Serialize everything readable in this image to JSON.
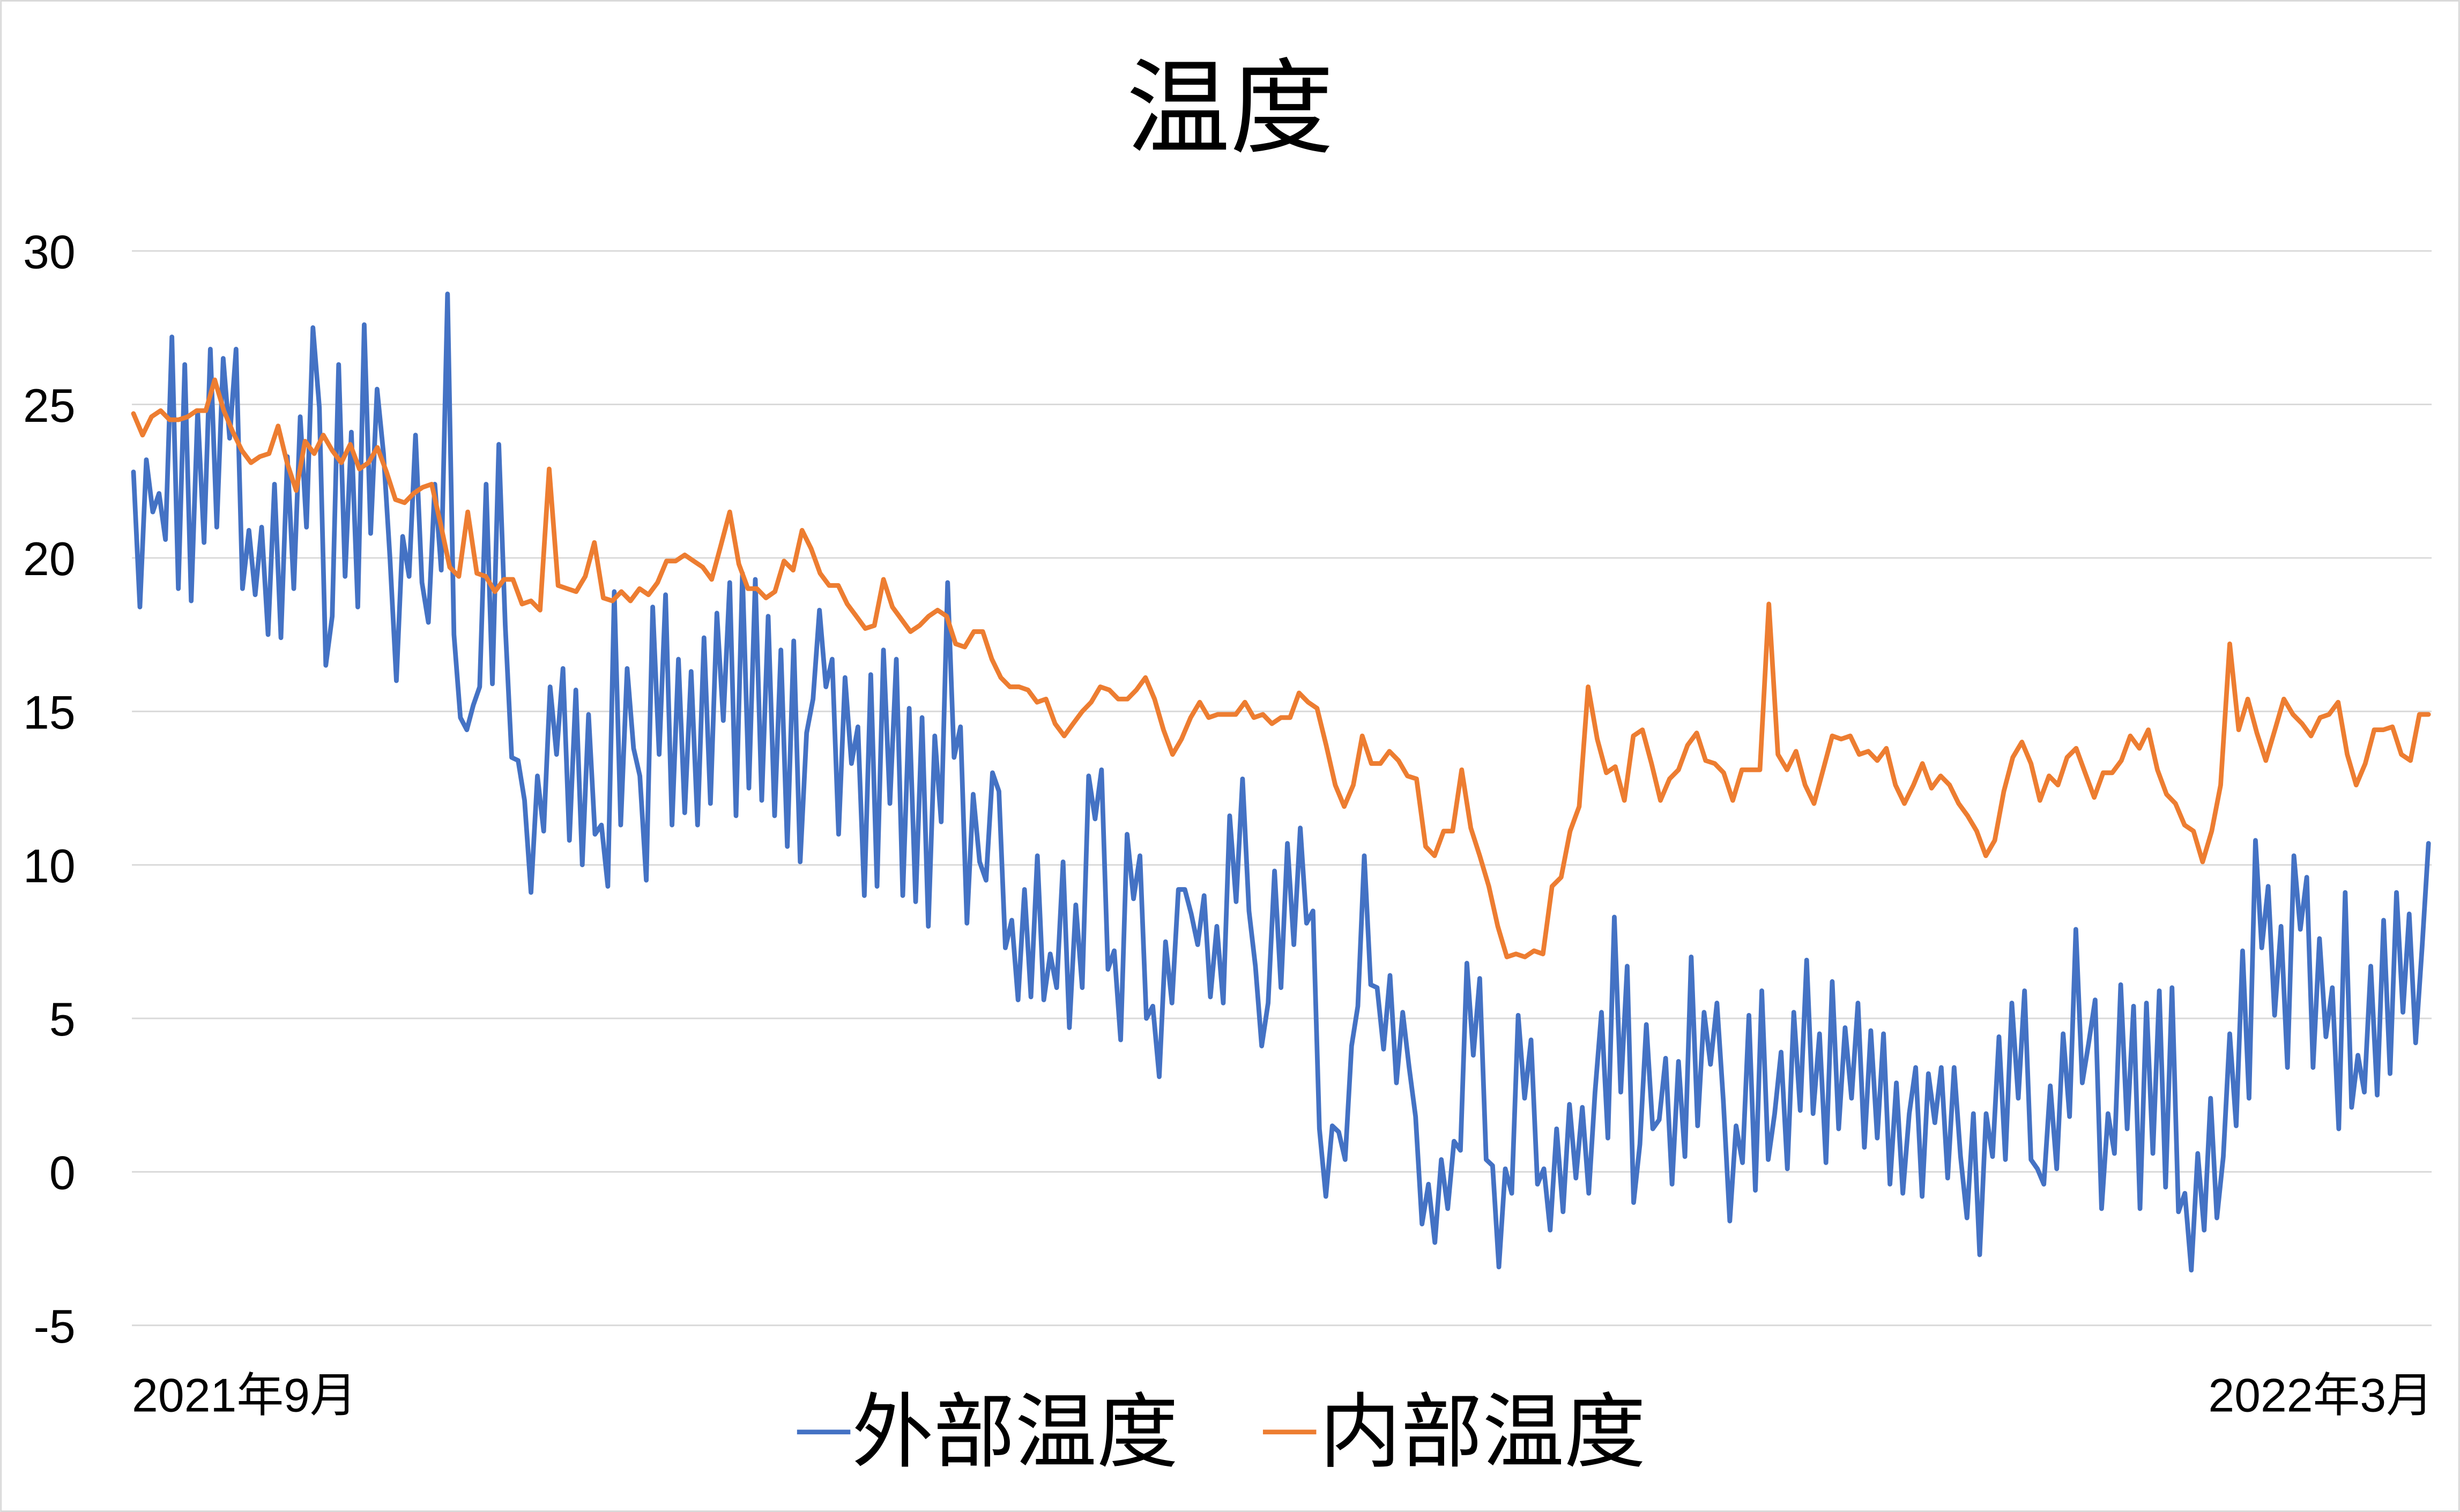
{
  "chart_data": {
    "type": "line",
    "title": "温度",
    "xlabel": "",
    "ylabel": "",
    "ylim": [
      -5,
      30
    ],
    "yticks": [
      "30",
      "25",
      "20",
      "15",
      "10",
      "5",
      "0",
      "-5"
    ],
    "ytick_values": [
      30,
      25,
      20,
      15,
      10,
      5,
      0,
      -5
    ],
    "x_tick_labels": {
      "start": "2021年9月",
      "end": "2022年3月"
    },
    "grid": true,
    "legend_position": "bottom",
    "series": [
      {
        "name": "外部温度",
        "color": "#4472C4",
        "values": [
          22.8,
          18.4,
          23.2,
          21.5,
          22.1,
          20.6,
          27.2,
          19,
          26.3,
          18.6,
          24.8,
          20.5,
          26.8,
          21,
          26.5,
          23.9,
          26.8,
          19,
          20.9,
          18.8,
          21,
          17.5,
          22.4,
          17.4,
          23.3,
          19,
          24.6,
          21,
          27.5,
          24.9,
          16.5,
          18.1,
          26.3,
          19.4,
          24.1,
          18.4,
          27.6,
          20.8,
          25.5,
          23.4,
          20,
          16,
          20.7,
          19.4,
          24,
          19.2,
          17.9,
          22.4,
          19.6,
          28.6,
          17.5,
          14.8,
          14.4,
          15.2,
          15.8,
          22.4,
          15.9,
          23.7,
          17.8,
          13.5,
          13.4,
          12.1,
          9.1,
          12.9,
          11.1,
          15.8,
          13.6,
          16.4,
          10.8,
          15.7,
          10,
          14.9,
          11,
          11.3,
          9.3,
          18.9,
          11.3,
          16.4,
          13.8,
          12.9,
          9.5,
          18.4,
          13.6,
          18.8,
          11.3,
          16.7,
          11.7,
          16.3,
          11.3,
          17.4,
          12,
          18.2,
          14.7,
          19.2,
          11.6,
          19.5,
          12.5,
          19.3,
          12.1,
          18.1,
          11.6,
          17,
          10.6,
          17.3,
          10.1,
          14.3,
          15.4,
          18.3,
          15.8,
          16.7,
          11,
          16.1,
          13.3,
          14.5,
          9,
          16.2,
          9.3,
          17,
          12,
          16.7,
          9,
          15.1,
          8.8,
          14.8,
          8,
          14.2,
          11.4,
          19.2,
          13.5,
          14.5,
          8.1,
          12.3,
          10.1,
          9.5,
          13,
          12.4,
          7.3,
          8.2,
          5.6,
          9.2,
          5.7,
          10.3,
          5.6,
          7.1,
          6,
          10.1,
          4.7,
          8.7,
          6,
          12.9,
          11.5,
          13.1,
          6.6,
          7.2,
          4.3,
          11,
          8.9,
          10.3,
          5,
          5.4,
          3.1,
          7.5,
          5.5,
          9.2,
          9.2,
          8.4,
          7.4,
          9,
          5.7,
          8,
          5.5,
          11.6,
          8.8,
          12.8,
          8.5,
          6.7,
          4.1,
          5.5,
          9.8,
          6,
          10.7,
          7.4,
          11.2,
          8.1,
          8.5,
          1.4,
          -0.8,
          1.5,
          1.3,
          0.4,
          4.1,
          5.4,
          10.3,
          6.1,
          6,
          4,
          6.4,
          2.9,
          5.2,
          3.4,
          1.8,
          -1.7,
          -0.4,
          -2.3,
          0.4,
          -1.2,
          1,
          0.7,
          6.8,
          3.8,
          6.3,
          0.4,
          0.2,
          -3.1,
          0.1,
          -0.7,
          5.1,
          2.4,
          4.3,
          -0.4,
          0.1,
          -1.9,
          1.4,
          -1.3,
          2.2,
          -0.2,
          2.1,
          -0.7,
          2.6,
          5.2,
          1.1,
          8.3,
          2.6,
          6.7,
          -1,
          0.9,
          4.8,
          1.4,
          1.7,
          3.7,
          -0.4,
          3.6,
          0.5,
          7,
          1.5,
          5.2,
          3.5,
          5.5,
          2.3,
          -1.6,
          1.5,
          0.3,
          5.1,
          -0.6,
          5.9,
          0.4,
          1.9,
          3.9,
          0.1,
          5.2,
          2,
          6.9,
          1.9,
          4.5,
          0.3,
          6.2,
          1.4,
          4.7,
          2.4,
          5.5,
          0.8,
          4.6,
          1.1,
          4.5,
          -0.4,
          2.9,
          -0.7,
          1.9,
          3.4,
          -0.8,
          3.2,
          1.6,
          3.4,
          -0.2,
          3.4,
          0.5,
          -1.5,
          1.9,
          -2.7,
          1.9,
          0.5,
          4.4,
          0.4,
          5.5,
          2.4,
          5.9,
          0.4,
          0.1,
          -0.4,
          2.8,
          0.1,
          4.5,
          1.8,
          7.9,
          2.9,
          4.2,
          5.6,
          -1.2,
          1.9,
          0.6,
          6.1,
          1.4,
          5.4,
          -1.2,
          5.5,
          0.6,
          5.9,
          -0.5,
          6,
          -1.3,
          -0.7,
          -3.2,
          0.6,
          -1.9,
          2.4,
          -1.5,
          0.5,
          4.5,
          1.5,
          7.2,
          2.4,
          10.8,
          7.3,
          9.3,
          5.1,
          8,
          3.4,
          10.3,
          7.9,
          9.6,
          3.4,
          7.6,
          4.4,
          6,
          1.4,
          9.1,
          2.1,
          3.8,
          2.6,
          6.7,
          2.5,
          8.2,
          3.2,
          9.1,
          5.2,
          8.4,
          4.2,
          7.3,
          10.7
        ]
      },
      {
        "name": "内部温度",
        "color": "#ED7D31",
        "values": [
          24.7,
          24.0,
          24.6,
          24.8,
          24.5,
          24.5,
          24.6,
          24.8,
          24.8,
          25.8,
          24.8,
          24.1,
          23.5,
          23.1,
          23.3,
          23.4,
          24.3,
          23.1,
          22.2,
          23.8,
          23.4,
          24,
          23.5,
          23.1,
          23.7,
          22.9,
          23.1,
          23.6,
          22.8,
          21.9,
          21.8,
          22.1,
          22.3,
          22.4,
          21.1,
          19.7,
          19.4,
          21.5,
          19.5,
          19.4,
          18.9,
          19.3,
          19.3,
          18.5,
          18.6,
          18.3,
          22.9,
          19.1,
          19,
          18.9,
          19.4,
          20.5,
          18.7,
          18.6,
          18.9,
          18.6,
          19,
          18.8,
          19.2,
          19.9,
          19.9,
          20.1,
          19.9,
          19.7,
          19.3,
          20.4,
          21.5,
          19.8,
          19,
          19,
          18.7,
          18.9,
          19.9,
          19.6,
          20.9,
          20.3,
          19.5,
          19.1,
          19.1,
          18.5,
          18.1,
          17.7,
          17.8,
          19.3,
          18.4,
          18,
          17.6,
          17.8,
          18.1,
          18.3,
          18.1,
          17.2,
          17.1,
          17.6,
          17.6,
          16.7,
          16.1,
          15.8,
          15.8,
          15.7,
          15.3,
          15.4,
          14.6,
          14.2,
          14.6,
          15,
          15.3,
          15.8,
          15.7,
          15.4,
          15.4,
          15.7,
          16.1,
          15.4,
          14.4,
          13.6,
          14.1,
          14.8,
          15.3,
          14.8,
          14.9,
          14.9,
          14.9,
          15.3,
          14.8,
          14.9,
          14.6,
          14.8,
          14.8,
          15.6,
          15.3,
          15.1,
          13.9,
          12.6,
          11.9,
          12.6,
          14.2,
          13.3,
          13.3,
          13.7,
          13.4,
          12.9,
          12.8,
          10.6,
          10.3,
          11.1,
          11.1,
          13.1,
          11.2,
          10.3,
          9.3,
          8,
          7,
          7.1,
          7,
          7.2,
          7.1,
          9.3,
          9.6,
          11.1,
          11.9,
          15.8,
          14.1,
          13,
          13.2,
          12.1,
          14.2,
          14.4,
          13.3,
          12.1,
          12.8,
          13.1,
          13.9,
          14.3,
          13.4,
          13.3,
          13,
          12.1,
          13.1,
          13.1,
          13.1,
          18.5,
          13.6,
          13.1,
          13.7,
          12.6,
          12,
          13.1,
          14.2,
          14.1,
          14.2,
          13.6,
          13.7,
          13.4,
          13.8,
          12.6,
          12,
          12.6,
          13.3,
          12.5,
          12.9,
          12.6,
          12,
          11.6,
          11.1,
          10.3,
          10.8,
          12.4,
          13.5,
          14,
          13.3,
          12.1,
          12.9,
          12.6,
          13.5,
          13.8,
          13,
          12.2,
          13,
          13,
          13.4,
          14.2,
          13.8,
          14.4,
          13.1,
          12.3,
          12,
          11.3,
          11.1,
          10.1,
          11.1,
          12.6,
          17.2,
          14.4,
          15.4,
          14.3,
          13.4,
          14.4,
          15.4,
          14.9,
          14.6,
          14.2,
          14.8,
          14.9,
          15.3,
          13.6,
          12.6,
          13.3,
          14.4,
          14.4,
          14.5,
          13.6,
          13.4,
          14.9,
          14.9
        ]
      }
    ]
  }
}
